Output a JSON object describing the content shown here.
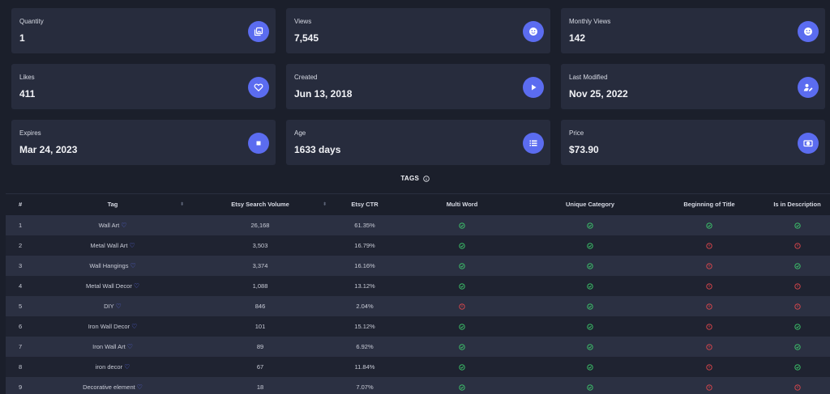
{
  "cards": [
    {
      "label": "Quantity",
      "value": "1",
      "icon": "gallery-icon"
    },
    {
      "label": "Views",
      "value": "7,545",
      "icon": "smiley-icon"
    },
    {
      "label": "Monthly Views",
      "value": "142",
      "icon": "smiley-icon"
    },
    {
      "label": "Likes",
      "value": "411",
      "icon": "heart-icon"
    },
    {
      "label": "Created",
      "value": "Jun 13, 2018",
      "icon": "play-icon"
    },
    {
      "label": "Last Modified",
      "value": "Nov 25, 2022",
      "icon": "user-edit-icon"
    },
    {
      "label": "Expires",
      "value": "Mar 24, 2023",
      "icon": "stop-icon"
    },
    {
      "label": "Age",
      "value": "1633 days",
      "icon": "list-icon"
    },
    {
      "label": "Price",
      "value": "$73.90",
      "icon": "money-icon"
    }
  ],
  "tags_title": "TAGS",
  "table": {
    "headers": [
      "#",
      "Tag",
      "Etsy Search Volume",
      "Etsy CTR",
      "Multi Word",
      "Unique Category",
      "Beginning of Title",
      "Is in Description"
    ],
    "rows": [
      {
        "n": "1",
        "tag": "Wall Art",
        "volume": "26,168",
        "ctr": "61.35%",
        "multi": "ok",
        "unique": "ok",
        "begin": "ok",
        "desc": "ok"
      },
      {
        "n": "2",
        "tag": "Metal Wall Art",
        "volume": "3,503",
        "ctr": "16.79%",
        "multi": "ok",
        "unique": "ok",
        "begin": "bad",
        "desc": "bad"
      },
      {
        "n": "3",
        "tag": "Wall Hangings",
        "volume": "3,374",
        "ctr": "16.16%",
        "multi": "ok",
        "unique": "ok",
        "begin": "bad",
        "desc": "ok"
      },
      {
        "n": "4",
        "tag": "Metal Wall Decor",
        "volume": "1,088",
        "ctr": "13.12%",
        "multi": "ok",
        "unique": "ok",
        "begin": "bad",
        "desc": "bad"
      },
      {
        "n": "5",
        "tag": "DIY",
        "volume": "846",
        "ctr": "2.04%",
        "multi": "bad",
        "unique": "ok",
        "begin": "bad",
        "desc": "bad"
      },
      {
        "n": "6",
        "tag": "Iron Wall Decor",
        "volume": "101",
        "ctr": "15.12%",
        "multi": "ok",
        "unique": "ok",
        "begin": "bad",
        "desc": "ok"
      },
      {
        "n": "7",
        "tag": "Iron Wall Art",
        "volume": "89",
        "ctr": "6.92%",
        "multi": "ok",
        "unique": "ok",
        "begin": "bad",
        "desc": "ok"
      },
      {
        "n": "8",
        "tag": "iron decor",
        "volume": "67",
        "ctr": "11.84%",
        "multi": "ok",
        "unique": "ok",
        "begin": "bad",
        "desc": "ok"
      },
      {
        "n": "9",
        "tag": "Decorative element",
        "volume": "18",
        "ctr": "7.07%",
        "multi": "ok",
        "unique": "ok",
        "begin": "bad",
        "desc": "bad"
      }
    ]
  },
  "colors": {
    "accent": "#5b6cf0",
    "ok": "#3ecf6e",
    "bad": "#e5484d"
  }
}
